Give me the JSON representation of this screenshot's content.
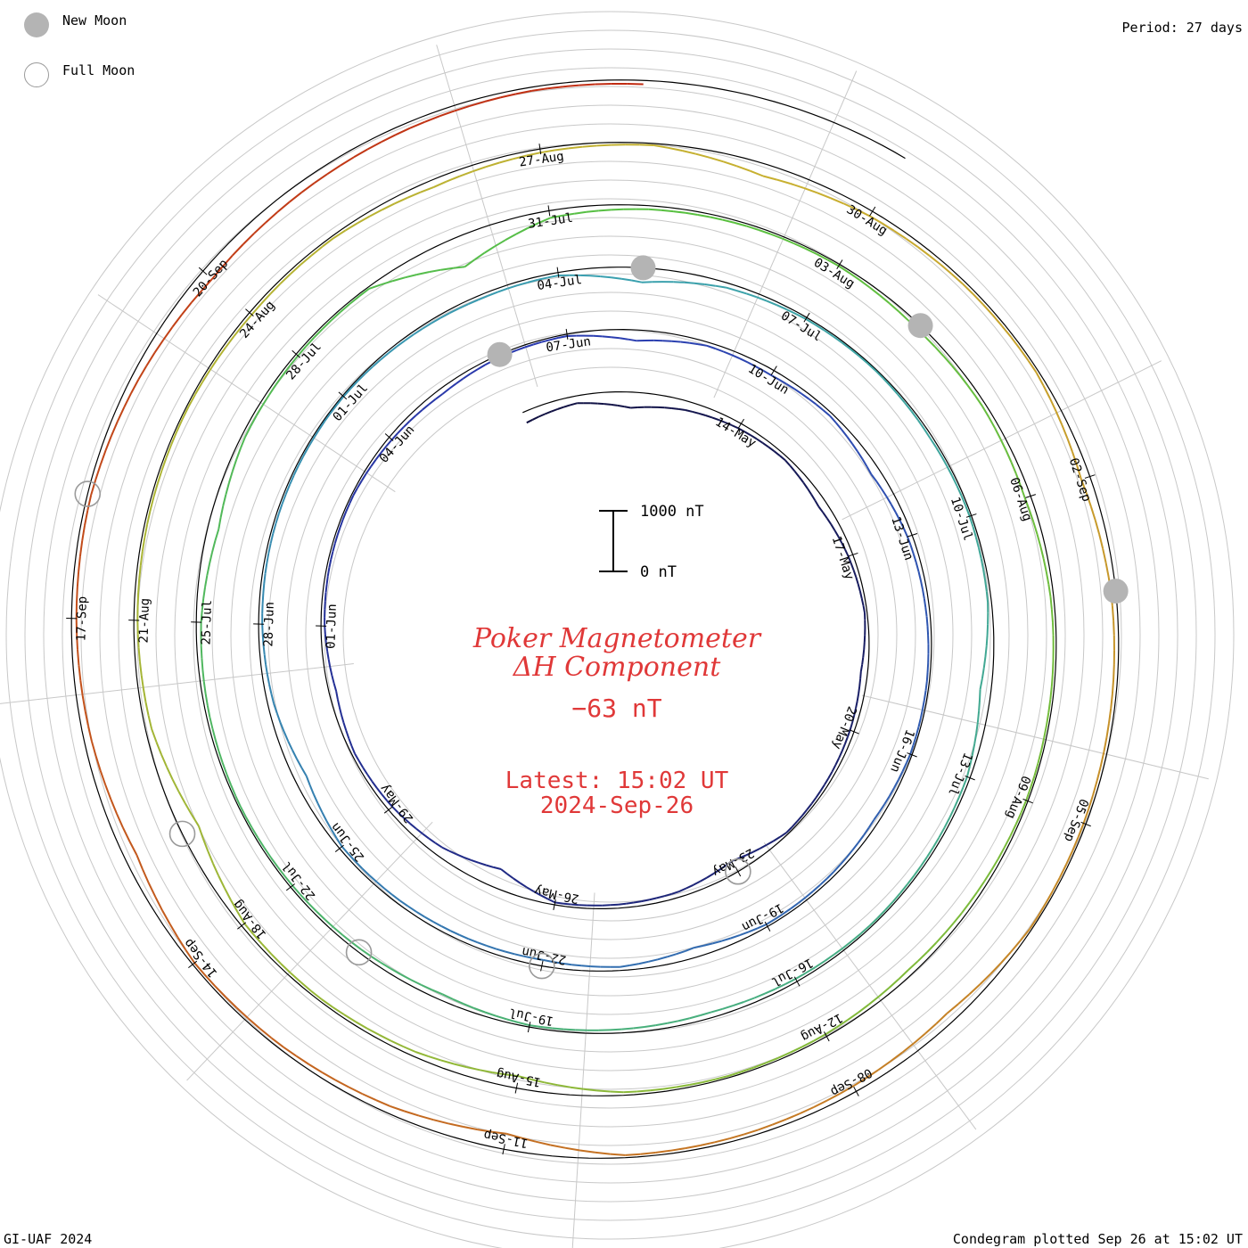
{
  "legend": {
    "new_moon": "New Moon",
    "full_moon": "Full Moon"
  },
  "period_label": "Period: 27 days",
  "footer": {
    "left": "GI-UAF 2024",
    "right": "Condegram plotted Sep 26 at 15:02 UT"
  },
  "chart_data": {
    "type": "line",
    "title": [
      "Poker Magnetometer",
      "ΔH Component"
    ],
    "current_value": "−63 nT",
    "latest": [
      "Latest: 15:02 UT",
      "2024-Sep-26"
    ],
    "scale_bar": {
      "top": "1000 nT",
      "bottom": "0 nT"
    },
    "start_date": "2024-05-10",
    "end_date": "2024-09-26",
    "period_days": 27,
    "ring_date_labels": [
      [
        "14-May",
        "17-May",
        "20-May",
        "23-May",
        "26-May",
        "29-May",
        "01-Jun",
        "04-Jun",
        "07-Jun"
      ],
      [
        "10-Jun",
        "13-Jun",
        "16-Jun",
        "19-Jun",
        "22-Jun",
        "25-Jun",
        "28-Jun",
        "01-Jul",
        "04-Jul"
      ],
      [
        "07-Jul",
        "10-Jul",
        "13-Jul",
        "16-Jul",
        "19-Jul",
        "22-Jul",
        "25-Jul",
        "28-Jul",
        "31-Jul"
      ],
      [
        "03-Aug",
        "06-Aug",
        "09-Aug",
        "12-Aug",
        "15-Aug",
        "18-Aug",
        "21-Aug",
        "24-Aug",
        "27-Aug"
      ],
      [
        "30-Aug",
        "02-Sep",
        "05-Sep",
        "08-Sep",
        "11-Sep",
        "14-Sep",
        "17-Sep",
        "20-Sep"
      ]
    ],
    "new_moon_dates": [
      "2024-06-06",
      "2024-07-05",
      "2024-08-04",
      "2024-09-03"
    ],
    "full_moon_dates": [
      "2024-05-23",
      "2024-06-22",
      "2024-07-21",
      "2024-08-19",
      "2024-09-18"
    ],
    "colors": {
      "line_start": "#101040",
      "line_mid1": "#2a3ab0",
      "line_mid2": "#3aa0b0",
      "line_mid3": "#58c040",
      "line_mid4": "#c8b030",
      "line_end": "#c02010",
      "title": "#e03838",
      "grid": "#c8c8c8",
      "moon": "#b4b4b4"
    },
    "series": [
      {
        "name": "ΔH",
        "step_days": 1,
        "values": [
          -180,
          -120,
          -260,
          -150,
          -90,
          -60,
          -140,
          -80,
          -40,
          -110,
          -70,
          -50,
          -30,
          -200,
          -90,
          -60,
          -40,
          -320,
          -150,
          -80,
          -50,
          -120,
          -60,
          -40,
          -30,
          -60,
          -90,
          -40,
          -30,
          -180,
          -60,
          -90,
          -50,
          -150,
          -80,
          -60,
          -40,
          -30,
          -80,
          -50,
          -40,
          -160,
          -60,
          -100,
          -80,
          -60,
          -50,
          -200,
          -100,
          -60,
          -40,
          -30,
          -20,
          -40,
          -60,
          -50,
          -240,
          -80,
          -30,
          -20,
          -40,
          -30,
          -60,
          -180,
          -50,
          -40,
          -30,
          -50,
          -90,
          -60,
          -30,
          -100,
          -60,
          -40,
          -30,
          -50,
          -80,
          -180,
          -60,
          -40,
          -30,
          -500,
          -120,
          -60,
          -40,
          -30,
          -80,
          -60,
          -100,
          -50,
          -40,
          -30,
          -60,
          -90,
          -40,
          -30,
          -50,
          -200,
          -80,
          -40,
          -60,
          -300,
          -100,
          -60,
          -40,
          -30,
          -50,
          -40,
          -120,
          -60,
          -30,
          -200,
          -90,
          -50,
          -40,
          -150,
          -80,
          -60,
          -40,
          -30,
          -160,
          -100,
          -60,
          -40,
          -260,
          -120,
          -60,
          -40,
          -200,
          -120,
          -80,
          -60,
          -120,
          -200,
          -150,
          -100,
          -60,
          -63
        ]
      }
    ]
  }
}
